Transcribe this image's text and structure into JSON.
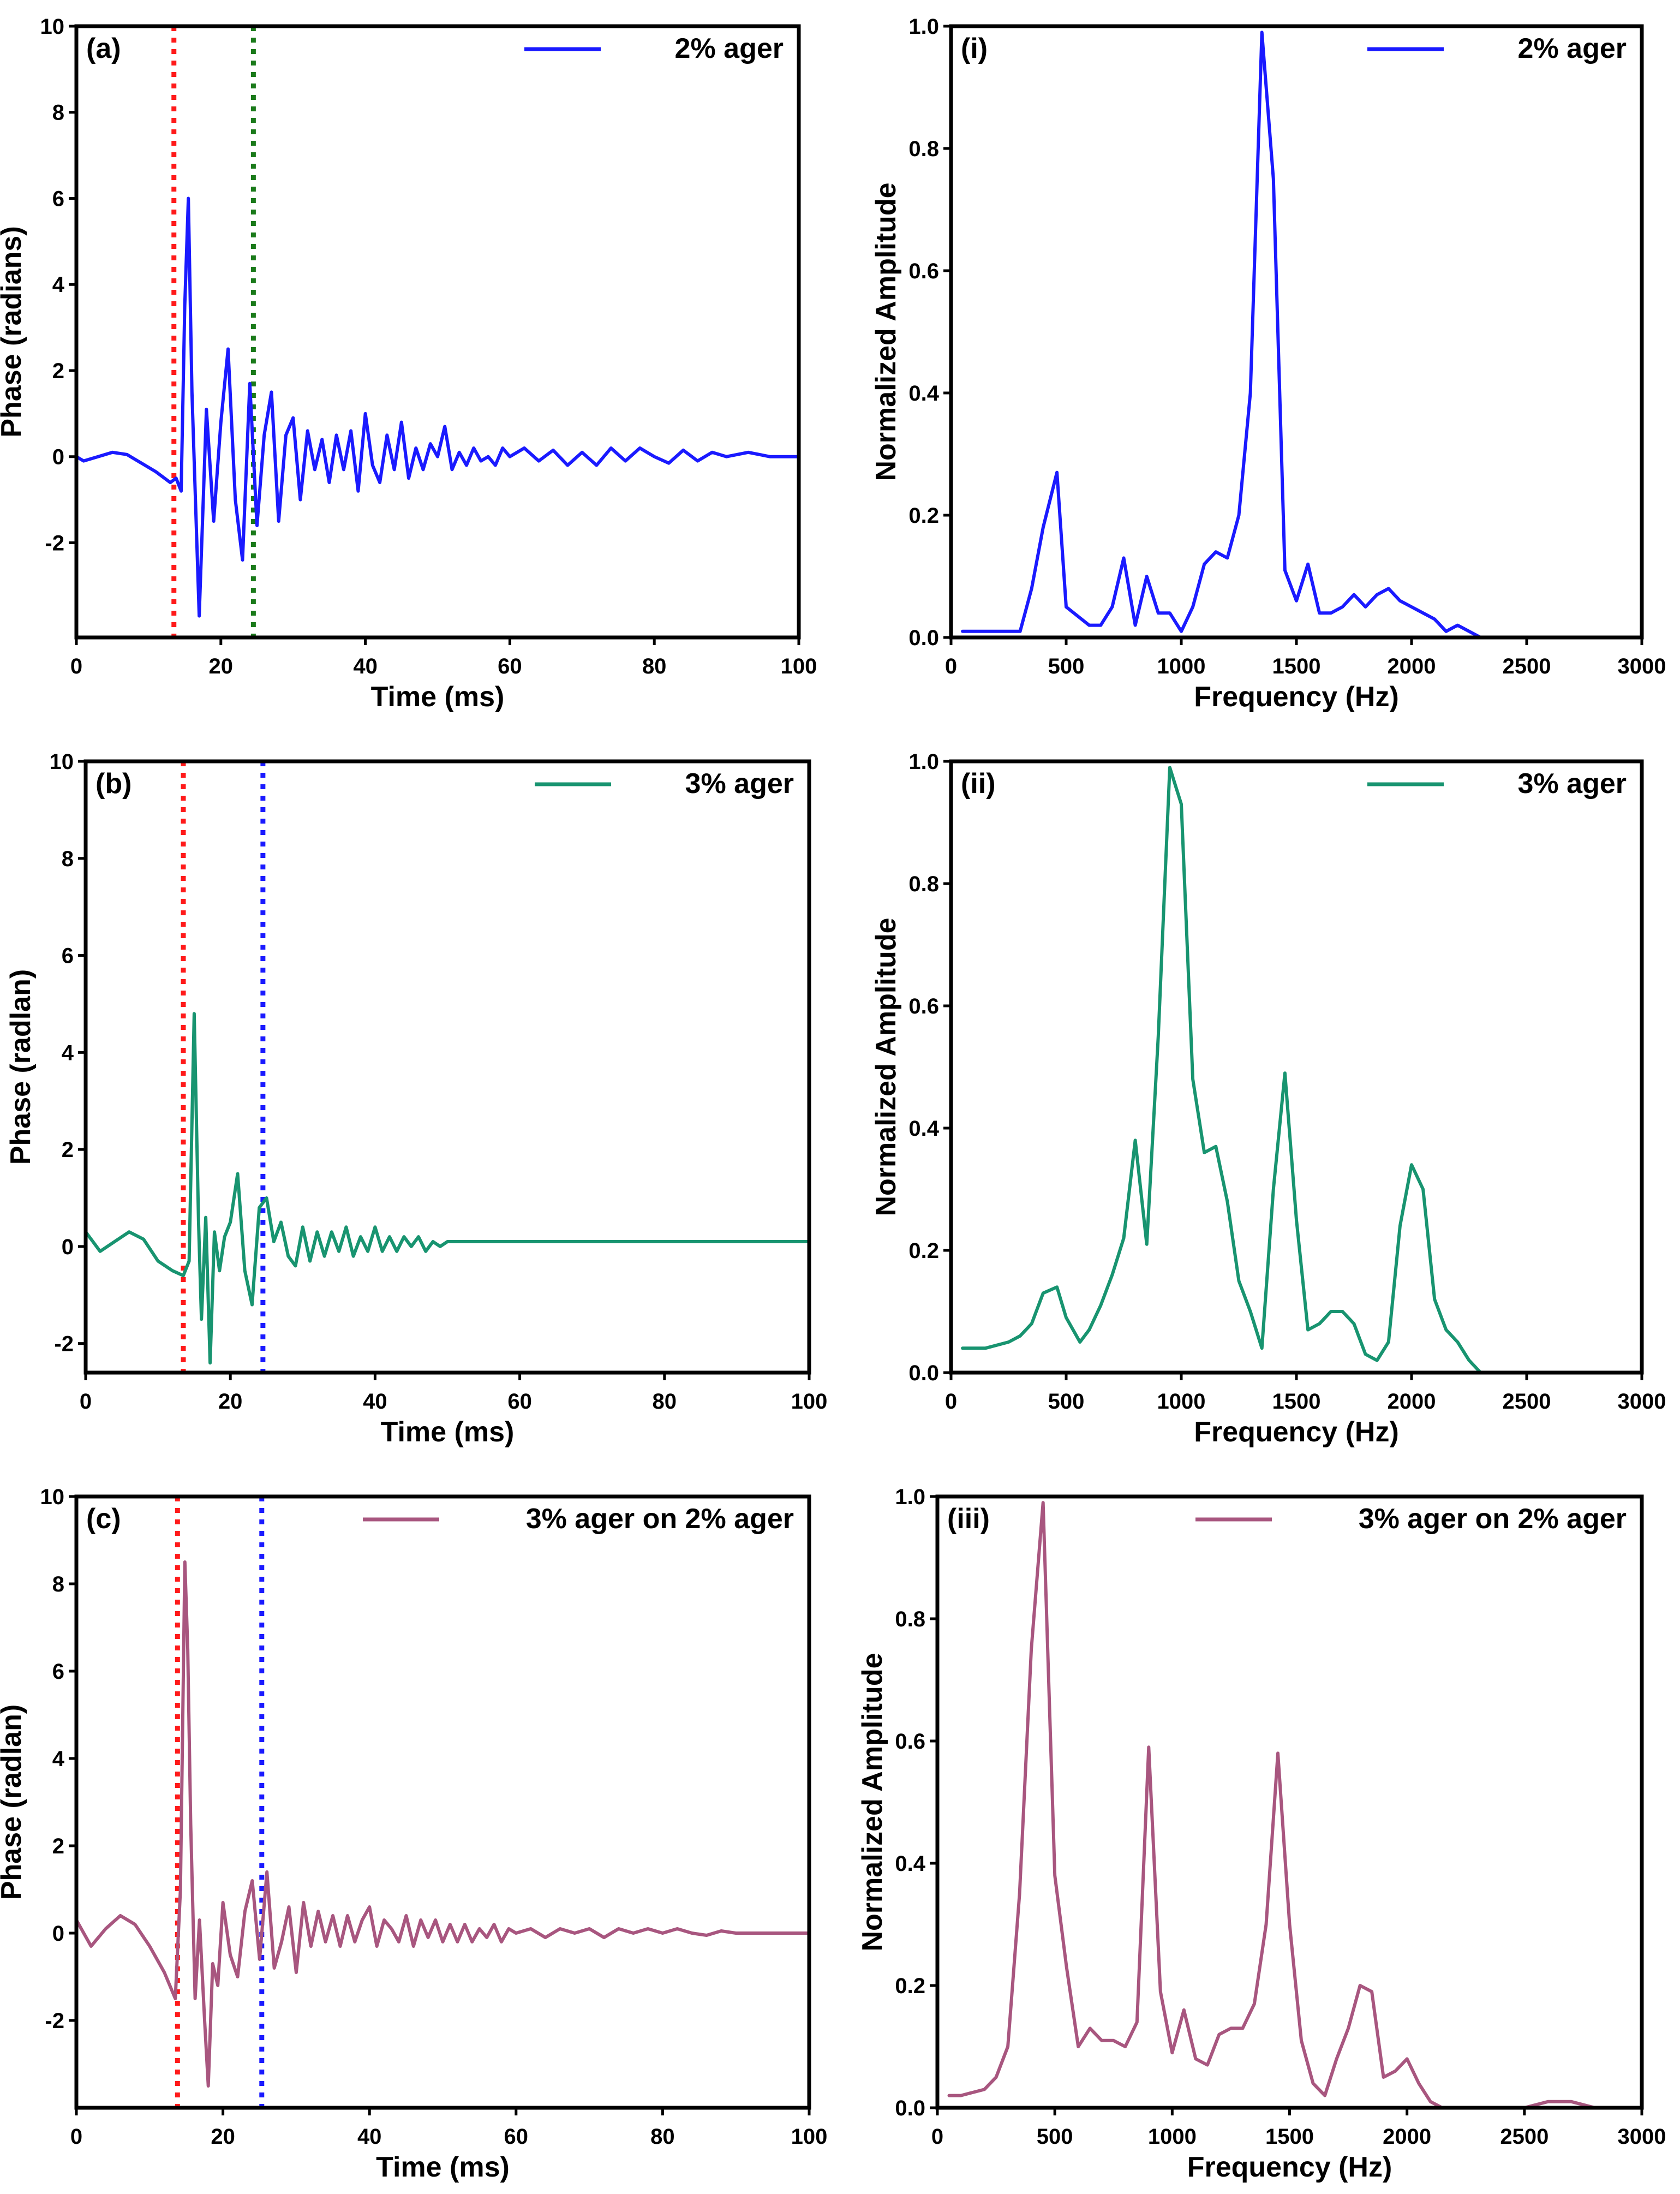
{
  "chart_data": [
    {
      "id": "a",
      "type": "line",
      "panel_label": "(a)",
      "xlabel": "Time (ms)",
      "ylabel": "Phase (radians)",
      "xlim": [
        0,
        100
      ],
      "ylim": [
        -4.2,
        10
      ],
      "xticks": [
        0,
        20,
        40,
        60,
        80,
        100
      ],
      "yticks": [
        -2,
        0,
        2,
        4,
        6,
        8,
        10
      ],
      "xtick_labels": [
        "0",
        "20",
        "40",
        "60",
        "80",
        "100"
      ],
      "ytick_labels": [
        "-2",
        "0",
        "2",
        "4",
        "6",
        "8",
        "10"
      ],
      "legend": "2% ager",
      "legend_position": "top-right",
      "color": "#1a1aff",
      "vlines": [
        {
          "x": 13.5,
          "color": "#ff1a1a"
        },
        {
          "x": 24.5,
          "color": "#1a7a1a"
        }
      ],
      "x": [
        0,
        1,
        3,
        5,
        7,
        9,
        11,
        13,
        13.8,
        14.5,
        15,
        15.5,
        16,
        17,
        18,
        19,
        20,
        21,
        22,
        23,
        24,
        25,
        26,
        27,
        28,
        29,
        30,
        31,
        32,
        33,
        34,
        35,
        36,
        37,
        38,
        39,
        40,
        41,
        42,
        43,
        44,
        45,
        46,
        47,
        48,
        49,
        50,
        51,
        52,
        53,
        54,
        55,
        56,
        57,
        58,
        59,
        60,
        62,
        64,
        66,
        68,
        70,
        72,
        74,
        76,
        78,
        80,
        82,
        84,
        86,
        88,
        90,
        93,
        96,
        100
      ],
      "y": [
        0,
        -0.1,
        0,
        0.1,
        0.05,
        -0.15,
        -0.35,
        -0.6,
        -0.5,
        -0.8,
        3.5,
        6.0,
        1.5,
        -3.7,
        1.1,
        -1.5,
        0.8,
        2.5,
        -1.0,
        -2.4,
        1.7,
        -1.6,
        0.5,
        1.5,
        -1.5,
        0.5,
        0.9,
        -1.0,
        0.6,
        -0.3,
        0.4,
        -0.6,
        0.5,
        -0.3,
        0.6,
        -0.8,
        1.0,
        -0.2,
        -0.6,
        0.5,
        -0.3,
        0.8,
        -0.5,
        0.2,
        -0.3,
        0.3,
        0.0,
        0.7,
        -0.3,
        0.1,
        -0.2,
        0.2,
        -0.1,
        0.0,
        -0.2,
        0.2,
        0.0,
        0.2,
        -0.1,
        0.15,
        -0.2,
        0.1,
        -0.2,
        0.2,
        -0.1,
        0.2,
        0.0,
        -0.15,
        0.15,
        -0.1,
        0.1,
        0.0,
        0.1,
        0.0,
        0.0
      ]
    },
    {
      "id": "i",
      "type": "line",
      "panel_label": "(i)",
      "xlabel": "Frequency (Hz)",
      "ylabel": "Normalized Amplitude",
      "xlim": [
        0,
        3000
      ],
      "ylim": [
        0,
        1.0
      ],
      "xticks": [
        0,
        500,
        1000,
        1500,
        2000,
        2500,
        3000
      ],
      "yticks": [
        0,
        0.2,
        0.4,
        0.6,
        0.8,
        1.0
      ],
      "xtick_labels": [
        "0",
        "500",
        "1000",
        "1500",
        "2000",
        "2500",
        "3000"
      ],
      "ytick_labels": [
        "0.0",
        "0.2",
        "0.4",
        "0.6",
        "0.8",
        "1.0"
      ],
      "legend": "2% ager",
      "legend_position": "top-right",
      "color": "#1a1aff",
      "x": [
        50,
        100,
        200,
        300,
        350,
        400,
        460,
        500,
        600,
        650,
        700,
        750,
        800,
        850,
        900,
        950,
        1000,
        1050,
        1100,
        1150,
        1200,
        1250,
        1300,
        1350,
        1400,
        1450,
        1500,
        1550,
        1600,
        1650,
        1700,
        1750,
        1800,
        1850,
        1900,
        1950,
        2000,
        2050,
        2100,
        2150,
        2200,
        2250,
        2300,
        2400,
        2500,
        2700,
        2800,
        3000
      ],
      "y": [
        0.01,
        0.01,
        0.01,
        0.01,
        0.08,
        0.18,
        0.27,
        0.05,
        0.02,
        0.02,
        0.05,
        0.13,
        0.02,
        0.1,
        0.04,
        0.04,
        0.01,
        0.05,
        0.12,
        0.14,
        0.13,
        0.2,
        0.4,
        0.99,
        0.75,
        0.11,
        0.06,
        0.12,
        0.04,
        0.04,
        0.05,
        0.07,
        0.05,
        0.07,
        0.08,
        0.06,
        0.05,
        0.04,
        0.03,
        0.01,
        0.02,
        0.01,
        0.0,
        0.0,
        0.0,
        0.0,
        0.0,
        0.0
      ]
    },
    {
      "id": "b",
      "type": "line",
      "panel_label": "(b)",
      "xlabel": "Time (ms)",
      "ylabel": "Phase (radlan)",
      "xlim": [
        0,
        100
      ],
      "ylim": [
        -2.6,
        10
      ],
      "xticks": [
        0,
        20,
        40,
        60,
        80,
        100
      ],
      "yticks": [
        -2,
        0,
        2,
        4,
        6,
        8,
        10
      ],
      "xtick_labels": [
        "0",
        "20",
        "40",
        "60",
        "80",
        "100"
      ],
      "ytick_labels": [
        "-2",
        "0",
        "2",
        "4",
        "6",
        "8",
        "10"
      ],
      "legend": "3% ager",
      "legend_position": "top-right",
      "color": "#189470",
      "vlines": [
        {
          "x": 13.5,
          "color": "#ff1a1a"
        },
        {
          "x": 24.5,
          "color": "#1a1aff"
        }
      ],
      "x": [
        0,
        1,
        2,
        4,
        6,
        8,
        10,
        12,
        13.5,
        14.3,
        15,
        15.6,
        16,
        16.6,
        17.2,
        17.8,
        18.5,
        19.2,
        20,
        21,
        22,
        23,
        24,
        25,
        26,
        27,
        28,
        29,
        30,
        31,
        32,
        33,
        34,
        35,
        36,
        37,
        38,
        39,
        40,
        41,
        42,
        43,
        44,
        45,
        46,
        47,
        48,
        49,
        50,
        55,
        60,
        70,
        80,
        90,
        100
      ],
      "y": [
        0.3,
        0.1,
        -0.1,
        0.1,
        0.3,
        0.15,
        -0.3,
        -0.5,
        -0.6,
        -0.3,
        4.8,
        0.5,
        -1.5,
        0.6,
        -2.4,
        0.3,
        -0.5,
        0.2,
        0.5,
        1.5,
        -0.5,
        -1.2,
        0.8,
        1.0,
        0.1,
        0.5,
        -0.2,
        -0.4,
        0.4,
        -0.3,
        0.3,
        -0.2,
        0.3,
        -0.1,
        0.4,
        -0.2,
        0.2,
        -0.1,
        0.4,
        -0.1,
        0.2,
        -0.1,
        0.2,
        0.0,
        0.2,
        -0.1,
        0.1,
        0.0,
        0.1,
        0.1,
        0.1,
        0.1,
        0.1,
        0.1,
        0.1
      ]
    },
    {
      "id": "ii",
      "type": "line",
      "panel_label": "(ii)",
      "xlabel": "Frequency (Hz)",
      "ylabel": "Normalized Amplitude",
      "xlim": [
        0,
        3000
      ],
      "ylim": [
        0,
        1.0
      ],
      "xticks": [
        0,
        500,
        1000,
        1500,
        2000,
        2500,
        3000
      ],
      "yticks": [
        0,
        0.2,
        0.4,
        0.6,
        0.8,
        1.0
      ],
      "xtick_labels": [
        "0",
        "500",
        "1000",
        "1500",
        "2000",
        "2500",
        "3000"
      ],
      "ytick_labels": [
        "0.0",
        "0.2",
        "0.4",
        "0.6",
        "0.8",
        "1.0"
      ],
      "legend": "3% ager",
      "legend_position": "top-right",
      "color": "#189470",
      "x": [
        50,
        150,
        250,
        300,
        350,
        400,
        460,
        500,
        560,
        600,
        650,
        700,
        750,
        800,
        850,
        900,
        950,
        1000,
        1050,
        1100,
        1150,
        1200,
        1250,
        1300,
        1350,
        1400,
        1450,
        1500,
        1550,
        1600,
        1650,
        1700,
        1750,
        1800,
        1850,
        1900,
        1950,
        2000,
        2050,
        2100,
        2150,
        2200,
        2250,
        2300,
        2400,
        2500,
        2600,
        2700,
        3000
      ],
      "y": [
        0.04,
        0.04,
        0.05,
        0.06,
        0.08,
        0.13,
        0.14,
        0.09,
        0.05,
        0.07,
        0.11,
        0.16,
        0.22,
        0.38,
        0.21,
        0.55,
        0.99,
        0.93,
        0.48,
        0.36,
        0.37,
        0.28,
        0.15,
        0.1,
        0.04,
        0.3,
        0.49,
        0.25,
        0.07,
        0.08,
        0.1,
        0.1,
        0.08,
        0.03,
        0.02,
        0.05,
        0.24,
        0.34,
        0.3,
        0.12,
        0.07,
        0.05,
        0.02,
        0.0,
        0.0,
        0.0,
        0.0,
        0.0,
        0.0
      ]
    },
    {
      "id": "c",
      "type": "line",
      "panel_label": "(c)",
      "xlabel": "Time (ms)",
      "ylabel": "Phase (radlan)",
      "xlim": [
        0,
        100
      ],
      "ylim": [
        -4.0,
        10
      ],
      "xticks": [
        0,
        20,
        40,
        60,
        80,
        100
      ],
      "yticks": [
        -2,
        0,
        2,
        4,
        6,
        8,
        10
      ],
      "xtick_labels": [
        "0",
        "20",
        "40",
        "60",
        "80",
        "100"
      ],
      "ytick_labels": [
        "-2",
        "0",
        "2",
        "4",
        "6",
        "8",
        "10"
      ],
      "legend": "3% ager on 2% ager",
      "legend_position": "top-right",
      "color": "#a8567f",
      "vlines": [
        {
          "x": 13.8,
          "color": "#ff1a1a"
        },
        {
          "x": 25.3,
          "color": "#1a1aff"
        }
      ],
      "x": [
        0,
        2,
        4,
        6,
        8,
        10,
        12,
        13.5,
        14.2,
        14.8,
        15.2,
        15.6,
        16.2,
        16.8,
        17.5,
        18,
        18.6,
        19.3,
        20,
        21,
        22,
        23,
        24,
        25,
        26,
        27,
        28,
        29,
        30,
        31,
        32,
        33,
        34,
        35,
        36,
        37,
        38,
        39,
        40,
        41,
        42,
        43,
        44,
        45,
        46,
        47,
        48,
        49,
        50,
        51,
        52,
        53,
        54,
        55,
        56,
        57,
        58,
        59,
        60,
        62,
        64,
        66,
        68,
        70,
        72,
        74,
        76,
        78,
        80,
        82,
        84,
        86,
        88,
        90,
        93,
        96,
        100
      ],
      "y": [
        0.3,
        -0.3,
        0.1,
        0.4,
        0.2,
        -0.3,
        -0.9,
        -1.5,
        1.0,
        8.5,
        6.5,
        2.5,
        -1.5,
        0.3,
        -2.0,
        -3.5,
        -0.7,
        -1.2,
        0.7,
        -0.5,
        -1.0,
        0.5,
        1.2,
        -0.6,
        1.4,
        -0.8,
        -0.2,
        0.6,
        -0.9,
        0.7,
        -0.3,
        0.5,
        -0.2,
        0.4,
        -0.3,
        0.4,
        -0.2,
        0.3,
        0.6,
        -0.3,
        0.3,
        0.1,
        -0.2,
        0.4,
        -0.3,
        0.3,
        -0.1,
        0.3,
        -0.2,
        0.2,
        -0.2,
        0.2,
        -0.2,
        0.1,
        -0.1,
        0.2,
        -0.2,
        0.1,
        0.0,
        0.1,
        -0.1,
        0.1,
        0.0,
        0.1,
        -0.1,
        0.1,
        0.0,
        0.1,
        0.0,
        0.1,
        0.0,
        -0.05,
        0.05,
        0.0,
        0.0,
        0.0,
        0.0
      ]
    },
    {
      "id": "iii",
      "type": "line",
      "panel_label": "(iii)",
      "xlabel": "Frequency (Hz)",
      "ylabel": "Normalized Amplitude",
      "xlim": [
        0,
        3000
      ],
      "ylim": [
        0,
        1.0
      ],
      "xticks": [
        0,
        500,
        1000,
        1500,
        2000,
        2500,
        3000
      ],
      "yticks": [
        0,
        0.2,
        0.4,
        0.6,
        0.8,
        1.0
      ],
      "xtick_labels": [
        "0",
        "500",
        "1000",
        "1500",
        "2000",
        "2500",
        "3000"
      ],
      "ytick_labels": [
        "0.0",
        "0.2",
        "0.4",
        "0.6",
        "0.8",
        "1.0"
      ],
      "legend": "3% ager on 2% ager",
      "legend_position": "top-right",
      "color": "#a8567f",
      "x": [
        50,
        100,
        150,
        200,
        250,
        300,
        350,
        400,
        450,
        500,
        550,
        600,
        650,
        700,
        750,
        800,
        850,
        900,
        950,
        1000,
        1050,
        1100,
        1150,
        1200,
        1250,
        1300,
        1350,
        1400,
        1450,
        1500,
        1550,
        1600,
        1650,
        1700,
        1750,
        1800,
        1850,
        1900,
        1950,
        2000,
        2050,
        2100,
        2150,
        2200,
        2300,
        2400,
        2500,
        2550,
        2600,
        2700,
        2800,
        3000
      ],
      "y": [
        0.02,
        0.02,
        0.025,
        0.03,
        0.05,
        0.1,
        0.35,
        0.75,
        0.99,
        0.38,
        0.23,
        0.1,
        0.13,
        0.11,
        0.11,
        0.1,
        0.14,
        0.59,
        0.19,
        0.09,
        0.16,
        0.08,
        0.07,
        0.12,
        0.13,
        0.13,
        0.17,
        0.3,
        0.58,
        0.3,
        0.11,
        0.04,
        0.02,
        0.08,
        0.13,
        0.2,
        0.19,
        0.05,
        0.06,
        0.08,
        0.04,
        0.01,
        0.0,
        0.0,
        0.0,
        0.0,
        0.0,
        0.005,
        0.01,
        0.01,
        0.0,
        0.0
      ]
    }
  ]
}
